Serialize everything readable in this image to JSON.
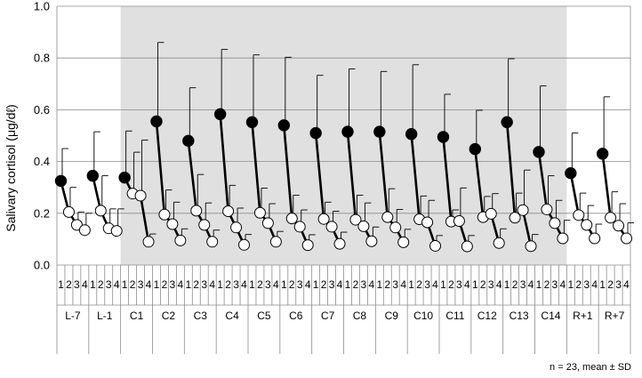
{
  "chart_data": {
    "type": "line",
    "ylabel": "Salivary cortisol (μg/dℓ)",
    "ylim": [
      0,
      1.0
    ],
    "yticks": [
      "0.0",
      "0.2",
      "0.4",
      "0.6",
      "0.8",
      "1.0"
    ],
    "grid": "horizontal",
    "shaded_region": {
      "from_group": "C1",
      "to_group": "C14",
      "color": "#e0e0e0"
    },
    "sub_labels": [
      "1",
      "2",
      "3",
      "4"
    ],
    "groups": [
      {
        "label": "L-7",
        "values": [
          0.325,
          0.205,
          0.155,
          0.135
        ],
        "sd": [
          0.125,
          0.095,
          0.05,
          0.065
        ]
      },
      {
        "label": "L-1",
        "values": [
          0.345,
          0.21,
          0.142,
          0.132
        ],
        "sd": [
          0.17,
          0.135,
          0.075,
          0.085
        ]
      },
      {
        "label": "C1",
        "values": [
          0.338,
          0.276,
          0.268,
          0.09
        ],
        "sd": [
          0.18,
          0.16,
          0.215,
          0.03
        ]
      },
      {
        "label": "C2",
        "values": [
          0.555,
          0.195,
          0.158,
          0.095
        ],
        "sd": [
          0.305,
          0.095,
          0.085,
          0.045
        ]
      },
      {
        "label": "C3",
        "values": [
          0.48,
          0.21,
          0.155,
          0.09
        ],
        "sd": [
          0.205,
          0.14,
          0.085,
          0.045
        ]
      },
      {
        "label": "C4",
        "values": [
          0.583,
          0.208,
          0.145,
          0.078
        ],
        "sd": [
          0.25,
          0.1,
          0.075,
          0.04
        ]
      },
      {
        "label": "C5",
        "values": [
          0.552,
          0.202,
          0.162,
          0.09
        ],
        "sd": [
          0.26,
          0.095,
          0.075,
          0.04
        ]
      },
      {
        "label": "C6",
        "values": [
          0.54,
          0.18,
          0.148,
          0.077
        ],
        "sd": [
          0.263,
          0.09,
          0.065,
          0.04
        ]
      },
      {
        "label": "C7",
        "values": [
          0.51,
          0.178,
          0.148,
          0.082
        ],
        "sd": [
          0.223,
          0.065,
          0.06,
          0.045
        ]
      },
      {
        "label": "C8",
        "values": [
          0.515,
          0.175,
          0.15,
          0.092
        ],
        "sd": [
          0.243,
          0.095,
          0.09,
          0.055
        ]
      },
      {
        "label": "C9",
        "values": [
          0.515,
          0.185,
          0.145,
          0.088
        ],
        "sd": [
          0.233,
          0.11,
          0.07,
          0.05
        ]
      },
      {
        "label": "C10",
        "values": [
          0.506,
          0.177,
          0.165,
          0.074
        ],
        "sd": [
          0.268,
          0.09,
          0.085,
          0.04
        ]
      },
      {
        "label": "C11",
        "values": [
          0.495,
          0.168,
          0.17,
          0.072
        ],
        "sd": [
          0.165,
          0.045,
          0.128,
          0.042
        ]
      },
      {
        "label": "C12",
        "values": [
          0.448,
          0.185,
          0.198,
          0.085
        ],
        "sd": [
          0.15,
          0.08,
          0.078,
          0.055
        ]
      },
      {
        "label": "C13",
        "values": [
          0.552,
          0.183,
          0.212,
          0.073
        ],
        "sd": [
          0.245,
          0.095,
          0.155,
          0.045
        ]
      },
      {
        "label": "C14",
        "values": [
          0.437,
          0.215,
          0.162,
          0.103
        ],
        "sd": [
          0.255,
          0.13,
          0.088,
          0.07
        ]
      },
      {
        "label": "R+1",
        "values": [
          0.355,
          0.193,
          0.155,
          0.103
        ],
        "sd": [
          0.155,
          0.085,
          0.075,
          0.055
        ]
      },
      {
        "label": "R+7",
        "values": [
          0.43,
          0.183,
          0.152,
          0.103
        ],
        "sd": [
          0.22,
          0.1,
          0.085,
          0.06
        ]
      }
    ]
  },
  "note": "n = 23, mean ± SD"
}
